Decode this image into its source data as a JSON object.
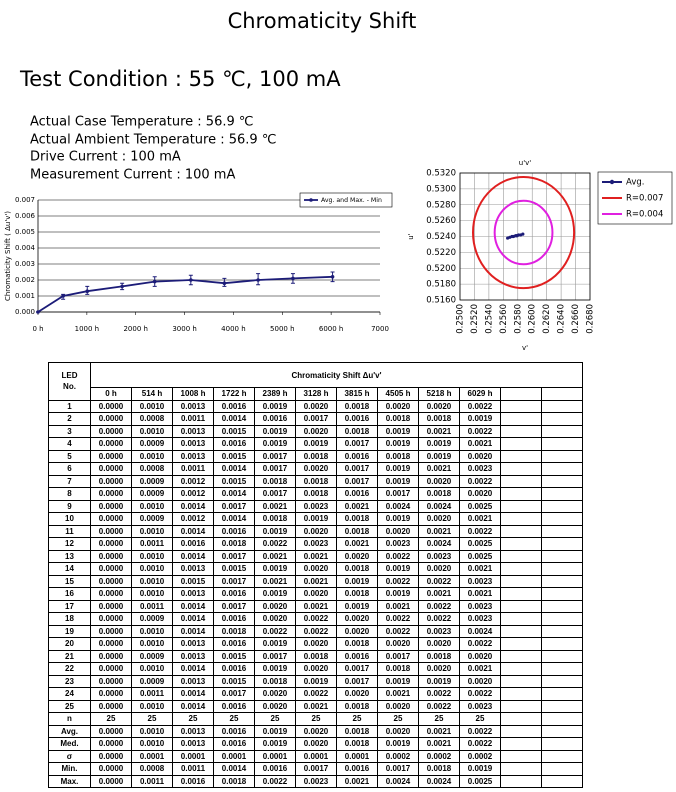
{
  "header": {
    "title": "Chromaticity Shift",
    "condition": "Test Condition : 55 ℃, 100 mA",
    "lines": [
      "Actual Case Temperature : 56.9 ℃",
      "Actual Ambient Temperature : 56.9 ℃",
      "Drive Current : 100 mA",
      "Measurement Current : 100 mA"
    ]
  },
  "chart_data": [
    {
      "type": "line",
      "ylabel": "Chromaticity Shift ( Δu'v')",
      "x": [
        0,
        514,
        1008,
        1722,
        2389,
        3128,
        3815,
        4505,
        5218,
        6029
      ],
      "series": [
        {
          "name": "Avg. and Max. - Min",
          "color": "#1c1c78",
          "values": [
            0,
            0.001,
            0.0013,
            0.0016,
            0.0019,
            0.002,
            0.0018,
            0.002,
            0.0021,
            0.0022
          ],
          "min": [
            0,
            0.0008,
            0.0011,
            0.0014,
            0.0016,
            0.0017,
            0.0016,
            0.0017,
            0.0018,
            0.0019
          ],
          "max": [
            0,
            0.0011,
            0.0016,
            0.0018,
            0.0022,
            0.0023,
            0.0021,
            0.0024,
            0.0024,
            0.0025
          ]
        }
      ],
      "xlim": [
        0,
        7000
      ],
      "xticks": [
        {
          "value": 0,
          "label": "0 h"
        },
        {
          "value": 1000,
          "label": "1000 h"
        },
        {
          "value": 2000,
          "label": "2000 h"
        },
        {
          "value": 3000,
          "label": "3000 h"
        },
        {
          "value": 4000,
          "label": "4000 h"
        },
        {
          "value": 5000,
          "label": "5000 h"
        },
        {
          "value": 6000,
          "label": "6000 h"
        },
        {
          "value": 7000,
          "label": "7000"
        }
      ],
      "ylim": [
        0,
        0.007
      ],
      "yticks": [
        {
          "value": 0,
          "label": "0.000"
        },
        {
          "value": 0.001,
          "label": "0.001"
        },
        {
          "value": 0.002,
          "label": "0.002"
        },
        {
          "value": 0.003,
          "label": "0.003"
        },
        {
          "value": 0.004,
          "label": "0.004"
        },
        {
          "value": 0.005,
          "label": "0.005"
        },
        {
          "value": 0.006,
          "label": "0.006"
        },
        {
          "value": 0.007,
          "label": "0.007"
        }
      ],
      "grid": true,
      "legend": "top-right"
    },
    {
      "type": "scatter",
      "title": "u'v'",
      "xlabel": "v'",
      "ylabel": "u'",
      "xlim": [
        0.25,
        0.268
      ],
      "xticks": [
        {
          "value": 0.25,
          "label": "0.2500"
        },
        {
          "value": 0.252,
          "label": "0.2520"
        },
        {
          "value": 0.254,
          "label": "0.2540"
        },
        {
          "value": 0.256,
          "label": "0.2560"
        },
        {
          "value": 0.258,
          "label": "0.2580"
        },
        {
          "value": 0.26,
          "label": "0.2600"
        },
        {
          "value": 0.262,
          "label": "0.2620"
        },
        {
          "value": 0.264,
          "label": "0.2640"
        },
        {
          "value": 0.266,
          "label": "0.2660"
        },
        {
          "value": 0.268,
          "label": "0.2680"
        }
      ],
      "ylim": [
        0.516,
        0.532
      ],
      "yticks": [
        {
          "value": 0.516,
          "label": "0.5160"
        },
        {
          "value": 0.518,
          "label": "0.5180"
        },
        {
          "value": 0.52,
          "label": "0.5200"
        },
        {
          "value": 0.522,
          "label": "0.5220"
        },
        {
          "value": 0.524,
          "label": "0.5240"
        },
        {
          "value": 0.526,
          "label": "0.5260"
        },
        {
          "value": 0.528,
          "label": "0.5280"
        },
        {
          "value": 0.53,
          "label": "0.5300"
        },
        {
          "value": 0.532,
          "label": "0.5320"
        }
      ],
      "series": [
        {
          "name": "Avg.",
          "color": "#1c1c78",
          "x": [
            0.2566,
            0.2569,
            0.2572,
            0.2574,
            0.2577,
            0.2579,
            0.2578,
            0.2581,
            0.2584,
            0.2587
          ],
          "y": [
            0.5238,
            0.5239,
            0.524,
            0.524,
            0.5241,
            0.5241,
            0.5241,
            0.5242,
            0.5242,
            0.5243
          ]
        }
      ],
      "circles": [
        {
          "name": "R=0.007",
          "color": "#e02020",
          "center": [
            0.2588,
            0.5245
          ],
          "radius": 0.007
        },
        {
          "name": "R=0.004",
          "color": "#e020e0",
          "center": [
            0.2588,
            0.5245
          ],
          "radius": 0.004
        }
      ],
      "grid": true,
      "legend": "right"
    }
  ],
  "table": {
    "corner": "LED No.",
    "title": "Chromaticity Shift Δu'v'",
    "columns": [
      "0 h",
      "514 h",
      "1008 h",
      "1722 h",
      "2389 h",
      "3128 h",
      "3815 h",
      "4505 h",
      "5218 h",
      "6029 h"
    ],
    "rows": [
      [
        "1",
        "0.0000",
        "0.0010",
        "0.0013",
        "0.0016",
        "0.0019",
        "0.0020",
        "0.0018",
        "0.0020",
        "0.0020",
        "0.0022"
      ],
      [
        "2",
        "0.0000",
        "0.0008",
        "0.0011",
        "0.0014",
        "0.0016",
        "0.0017",
        "0.0016",
        "0.0018",
        "0.0018",
        "0.0019"
      ],
      [
        "3",
        "0.0000",
        "0.0010",
        "0.0013",
        "0.0015",
        "0.0019",
        "0.0020",
        "0.0018",
        "0.0019",
        "0.0021",
        "0.0022"
      ],
      [
        "4",
        "0.0000",
        "0.0009",
        "0.0013",
        "0.0016",
        "0.0019",
        "0.0019",
        "0.0017",
        "0.0019",
        "0.0019",
        "0.0021"
      ],
      [
        "5",
        "0.0000",
        "0.0010",
        "0.0013",
        "0.0015",
        "0.0017",
        "0.0018",
        "0.0016",
        "0.0018",
        "0.0019",
        "0.0020"
      ],
      [
        "6",
        "0.0000",
        "0.0008",
        "0.0011",
        "0.0014",
        "0.0017",
        "0.0020",
        "0.0017",
        "0.0019",
        "0.0021",
        "0.0023"
      ],
      [
        "7",
        "0.0000",
        "0.0009",
        "0.0012",
        "0.0015",
        "0.0018",
        "0.0018",
        "0.0017",
        "0.0019",
        "0.0020",
        "0.0022"
      ],
      [
        "8",
        "0.0000",
        "0.0009",
        "0.0012",
        "0.0014",
        "0.0017",
        "0.0018",
        "0.0016",
        "0.0017",
        "0.0018",
        "0.0020"
      ],
      [
        "9",
        "0.0000",
        "0.0010",
        "0.0014",
        "0.0017",
        "0.0021",
        "0.0023",
        "0.0021",
        "0.0024",
        "0.0024",
        "0.0025"
      ],
      [
        "10",
        "0.0000",
        "0.0009",
        "0.0012",
        "0.0014",
        "0.0018",
        "0.0019",
        "0.0018",
        "0.0019",
        "0.0020",
        "0.0021"
      ],
      [
        "11",
        "0.0000",
        "0.0010",
        "0.0014",
        "0.0016",
        "0.0019",
        "0.0020",
        "0.0018",
        "0.0020",
        "0.0021",
        "0.0022"
      ],
      [
        "12",
        "0.0000",
        "0.0011",
        "0.0016",
        "0.0018",
        "0.0022",
        "0.0023",
        "0.0021",
        "0.0023",
        "0.0024",
        "0.0025"
      ],
      [
        "13",
        "0.0000",
        "0.0010",
        "0.0014",
        "0.0017",
        "0.0021",
        "0.0021",
        "0.0020",
        "0.0022",
        "0.0023",
        "0.0025"
      ],
      [
        "14",
        "0.0000",
        "0.0010",
        "0.0013",
        "0.0015",
        "0.0019",
        "0.0020",
        "0.0018",
        "0.0019",
        "0.0020",
        "0.0021"
      ],
      [
        "15",
        "0.0000",
        "0.0010",
        "0.0015",
        "0.0017",
        "0.0021",
        "0.0021",
        "0.0019",
        "0.0022",
        "0.0022",
        "0.0023"
      ],
      [
        "16",
        "0.0000",
        "0.0010",
        "0.0013",
        "0.0016",
        "0.0019",
        "0.0020",
        "0.0018",
        "0.0019",
        "0.0021",
        "0.0021"
      ],
      [
        "17",
        "0.0000",
        "0.0011",
        "0.0014",
        "0.0017",
        "0.0020",
        "0.0021",
        "0.0019",
        "0.0021",
        "0.0022",
        "0.0023"
      ],
      [
        "18",
        "0.0000",
        "0.0009",
        "0.0014",
        "0.0016",
        "0.0020",
        "0.0022",
        "0.0020",
        "0.0022",
        "0.0022",
        "0.0023"
      ],
      [
        "19",
        "0.0000",
        "0.0010",
        "0.0014",
        "0.0018",
        "0.0022",
        "0.0022",
        "0.0020",
        "0.0022",
        "0.0023",
        "0.0024"
      ],
      [
        "20",
        "0.0000",
        "0.0010",
        "0.0013",
        "0.0016",
        "0.0019",
        "0.0020",
        "0.0018",
        "0.0020",
        "0.0020",
        "0.0022"
      ],
      [
        "21",
        "0.0000",
        "0.0009",
        "0.0013",
        "0.0015",
        "0.0017",
        "0.0018",
        "0.0016",
        "0.0017",
        "0.0018",
        "0.0020"
      ],
      [
        "22",
        "0.0000",
        "0.0010",
        "0.0014",
        "0.0016",
        "0.0019",
        "0.0020",
        "0.0017",
        "0.0018",
        "0.0020",
        "0.0021"
      ],
      [
        "23",
        "0.0000",
        "0.0009",
        "0.0013",
        "0.0015",
        "0.0018",
        "0.0019",
        "0.0017",
        "0.0019",
        "0.0019",
        "0.0020"
      ],
      [
        "24",
        "0.0000",
        "0.0011",
        "0.0014",
        "0.0017",
        "0.0020",
        "0.0022",
        "0.0020",
        "0.0021",
        "0.0022",
        "0.0022"
      ],
      [
        "25",
        "0.0000",
        "0.0010",
        "0.0014",
        "0.0016",
        "0.0020",
        "0.0021",
        "0.0018",
        "0.0020",
        "0.0022",
        "0.0023"
      ],
      [
        "n",
        "25",
        "25",
        "25",
        "25",
        "25",
        "25",
        "25",
        "25",
        "25",
        "25"
      ],
      [
        "Avg.",
        "0.0000",
        "0.0010",
        "0.0013",
        "0.0016",
        "0.0019",
        "0.0020",
        "0.0018",
        "0.0020",
        "0.0021",
        "0.0022"
      ],
      [
        "Med.",
        "0.0000",
        "0.0010",
        "0.0013",
        "0.0016",
        "0.0019",
        "0.0020",
        "0.0018",
        "0.0019",
        "0.0021",
        "0.0022"
      ],
      [
        "σ",
        "0.0000",
        "0.0001",
        "0.0001",
        "0.0001",
        "0.0001",
        "0.0001",
        "0.0001",
        "0.0002",
        "0.0002",
        "0.0002"
      ],
      [
        "Min.",
        "0.0000",
        "0.0008",
        "0.0011",
        "0.0014",
        "0.0016",
        "0.0017",
        "0.0016",
        "0.0017",
        "0.0018",
        "0.0019"
      ],
      [
        "Max.",
        "0.0000",
        "0.0011",
        "0.0016",
        "0.0018",
        "0.0022",
        "0.0023",
        "0.0021",
        "0.0024",
        "0.0024",
        "0.0025"
      ]
    ]
  }
}
